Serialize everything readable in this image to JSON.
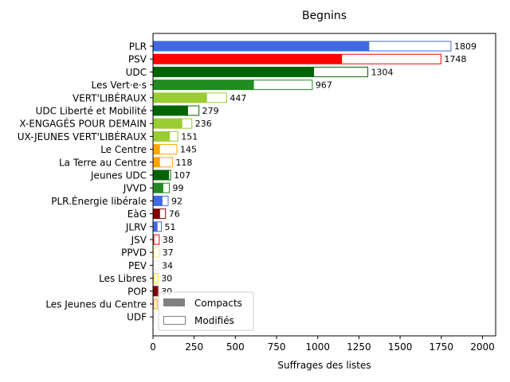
{
  "chart_data": {
    "type": "bar",
    "orientation": "horizontal",
    "title": "Begnins",
    "xlabel": "Suffrages des listes",
    "ylabel": "",
    "xlim": [
      0,
      2080
    ],
    "xticks": [
      0,
      250,
      500,
      750,
      1000,
      1250,
      1500,
      1750,
      2000
    ],
    "legend": {
      "placement": "bottom-left",
      "entries": [
        {
          "name": "Compacts",
          "style": "filled",
          "color": "#808080"
        },
        {
          "name": "Modifiés",
          "style": "outline",
          "color": "#808080"
        }
      ]
    },
    "categories": [
      "PLR",
      "PSV",
      "UDC",
      "Les Vert·e·s",
      "VERT'LIBÉRAUX",
      "UDC Liberté et Mobilité",
      "JEUNES-ENGAGÉS POUR DEMAIN",
      "JEUNES VERT'LIBÉRAUX",
      "Le Centre",
      "La Terre au Centre",
      "Jeunes UDC",
      "JVVD",
      "PLR.Énergie libérale",
      "EàG",
      "JLRV",
      "JSV",
      "PPVD",
      "PEV",
      "Les Libres",
      "POP",
      "Les Jeunes du Centre",
      "UDF"
    ],
    "category_labels": [
      "PLR",
      "PSV",
      "UDC",
      "Les Vert·e·s",
      "VERT'LIBÉRAUX",
      "UDC Liberté et Mobilité",
      "X-ENGAGÉS POUR DEMAIN",
      "UX-JEUNES VERT'LIBÉRAUX",
      "Le Centre",
      "La Terre au Centre",
      "Jeunes UDC",
      "JVVD",
      "PLR.Énergie libérale",
      "EàG",
      "JLRV",
      "JSV",
      "PPVD",
      "PEV",
      "Les Libres",
      "POP",
      "Les Jeunes du Centre",
      "UDF"
    ],
    "colors": [
      "#4169e1",
      "#ff0000",
      "#006400",
      "#228b22",
      "#9acd32",
      "#006400",
      "#9acd32",
      "#9acd32",
      "#ffa500",
      "#ffa500",
      "#006400",
      "#228b22",
      "#4169e1",
      "#800000",
      "#4169e1",
      "#ff0000",
      "#ffe680",
      "#e8e8e8",
      "#ffd700",
      "#800000",
      "#ffa500",
      "#e8e8e8"
    ],
    "series": [
      {
        "name": "Compacts",
        "values": [
          1310,
          1145,
          975,
          610,
          325,
          210,
          175,
          100,
          40,
          40,
          95,
          60,
          55,
          40,
          25,
          5,
          5,
          5,
          5,
          25,
          5,
          2
        ]
      },
      {
        "name": "Modifiés",
        "values": [
          499,
          603,
          329,
          357,
          122,
          69,
          61,
          51,
          105,
          78,
          12,
          39,
          37,
          36,
          26,
          33,
          32,
          29,
          25,
          5,
          20,
          8
        ]
      }
    ],
    "totals": [
      1809,
      1748,
      1304,
      967,
      447,
      279,
      236,
      151,
      145,
      118,
      107,
      99,
      92,
      76,
      51,
      38,
      37,
      34,
      30,
      30,
      25,
      10
    ],
    "total_labels": [
      "1809",
      "1748",
      "1304",
      "967",
      "447",
      "279",
      "236",
      "151",
      "145",
      "118",
      "107",
      "99",
      "92",
      "76",
      "51",
      "38",
      "37",
      "34",
      "30",
      "30",
      "",
      ""
    ]
  }
}
